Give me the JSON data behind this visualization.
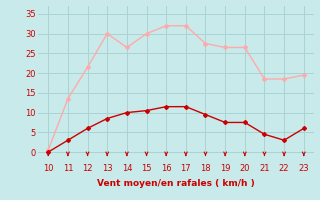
{
  "x": [
    10,
    11,
    12,
    13,
    14,
    15,
    16,
    17,
    18,
    19,
    20,
    21,
    22,
    23
  ],
  "y_mean": [
    0,
    3,
    6,
    8.5,
    10,
    10.5,
    11.5,
    11.5,
    9.5,
    7.5,
    7.5,
    4.5,
    3,
    6
  ],
  "y_gust": [
    0.5,
    13.5,
    21.5,
    30,
    26.5,
    30,
    32,
    32,
    27.5,
    26.5,
    26.5,
    18.5,
    18.5,
    19.5
  ],
  "xlabel": "Vent moyen/en rafales ( km/h )",
  "xlim": [
    9.5,
    23.5
  ],
  "ylim": [
    -1,
    37
  ],
  "yticks": [
    0,
    5,
    10,
    15,
    20,
    25,
    30,
    35
  ],
  "xticks": [
    10,
    11,
    12,
    13,
    14,
    15,
    16,
    17,
    18,
    19,
    20,
    21,
    22,
    23
  ],
  "color_mean": "#cc0000",
  "color_gust": "#ffaaaa",
  "bg_color": "#c8eaea",
  "grid_color": "#aad4d4",
  "text_color": "#cc0000",
  "arrow_color": "#cc0000"
}
